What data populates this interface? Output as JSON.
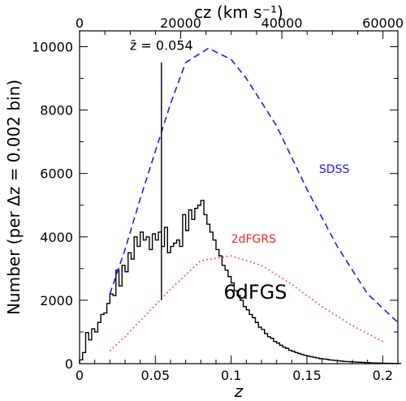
{
  "chart_data": {
    "type": "line",
    "xlabel": "z",
    "ylabel": "Number  (per  Δz = 0.002  bin)",
    "top_xlabel": "cz  (km s⁻¹)",
    "xlim": [
      0,
      0.21
    ],
    "ylim": [
      0,
      10500
    ],
    "top_xlim": [
      0,
      62950
    ],
    "x_ticks": [
      0,
      0.05,
      0.1,
      0.15,
      0.2
    ],
    "x_tick_labels": [
      "0",
      "0.05",
      "0.1",
      "0.15",
      "0.2"
    ],
    "y_ticks": [
      0,
      2000,
      4000,
      6000,
      8000,
      10000
    ],
    "y_tick_labels": [
      "0",
      "2000",
      "4000",
      "6000",
      "8000",
      "10000"
    ],
    "top_ticks": [
      0,
      20000,
      40000,
      60000
    ],
    "top_tick_labels": [
      "0",
      "20000",
      "40000",
      "60000"
    ],
    "grid": false,
    "annotations": [
      {
        "text": "z̄ = 0.054",
        "x": 0.054,
        "y": 9900,
        "color": "#000000"
      }
    ],
    "vline": {
      "x": 0.054,
      "y_range": [
        2000,
        9500
      ],
      "color": "#000000"
    },
    "series": [
      {
        "name": "6dFGS",
        "style": "step",
        "color": "#000000",
        "label_at": {
          "x": 0.095,
          "y": 2050
        },
        "label_size": "large",
        "bin_width": 0.002,
        "start": 0,
        "values": [
          120,
          350,
          980,
          750,
          1100,
          1000,
          1300,
          1550,
          1600,
          1900,
          2200,
          2150,
          2950,
          2450,
          3100,
          2900,
          3500,
          3300,
          4000,
          3700,
          4150,
          3900,
          4000,
          3600,
          4100,
          3900,
          4150,
          3700,
          4300,
          3500,
          3700,
          3800,
          3900,
          3700,
          4700,
          4200,
          4850,
          4550,
          4900,
          5000,
          5150,
          4700,
          4400,
          4150,
          3900,
          3600,
          3400,
          3100,
          2950,
          2750,
          2550,
          2300,
          2150,
          2000,
          1800,
          1700,
          1550,
          1450,
          1300,
          1150,
          1080,
          950,
          850,
          800,
          700,
          650,
          580,
          520,
          480,
          420,
          390,
          350,
          320,
          290,
          260,
          240,
          220,
          200,
          180,
          160,
          150,
          140,
          120,
          110,
          100,
          90,
          80,
          70,
          65,
          60,
          55,
          50,
          45,
          40,
          35,
          30,
          25,
          22,
          20,
          18,
          15,
          12,
          10,
          8,
          6,
          4
        ]
      },
      {
        "name": "SDSS",
        "style": "dashed",
        "color": "#1a1aff",
        "label_at": {
          "x": 0.158,
          "y": 6020
        },
        "x": [
          0.02,
          0.03,
          0.04,
          0.05,
          0.06,
          0.07,
          0.085,
          0.1,
          0.11,
          0.13,
          0.15,
          0.17,
          0.19,
          0.21
        ],
        "values": [
          2200,
          3600,
          5200,
          6700,
          8200,
          9500,
          9950,
          9600,
          9000,
          7500,
          5500,
          3700,
          2200,
          1300
        ]
      },
      {
        "name": "2dFGRS",
        "style": "dotted",
        "color": "#ff2020",
        "label_at": {
          "x": 0.1,
          "y": 3820
        },
        "x": [
          0.02,
          0.03,
          0.04,
          0.05,
          0.06,
          0.07,
          0.08,
          0.1,
          0.12,
          0.14,
          0.16,
          0.18,
          0.2
        ],
        "values": [
          400,
          850,
          1350,
          1850,
          2350,
          2800,
          3250,
          3400,
          3100,
          2500,
          1800,
          1200,
          700
        ]
      }
    ]
  }
}
